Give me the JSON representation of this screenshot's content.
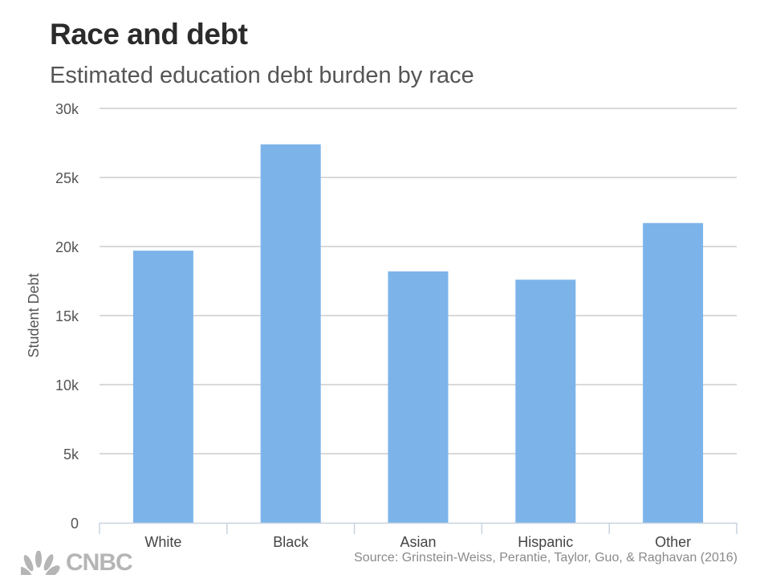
{
  "chart_data": {
    "type": "bar",
    "title": "Race and debt",
    "subtitle": "Estimated education debt burden by race",
    "xlabel": "",
    "ylabel": "Student Debt",
    "categories": [
      "White",
      "Black",
      "Asian",
      "Hispanic",
      "Other"
    ],
    "values": [
      19700,
      27400,
      18200,
      17600,
      21700
    ],
    "ylim": [
      0,
      30000
    ],
    "yticks": [
      0,
      5000,
      10000,
      15000,
      20000,
      25000,
      30000
    ],
    "ytick_labels": [
      "0",
      "5k",
      "10k",
      "15k",
      "20k",
      "25k",
      "30k"
    ],
    "grid": true,
    "bar_color": "#7cb4ea",
    "source": "Source: Grinstein-Weiss, Perantie, Taylor, Guo, & Raghavan (2016)"
  },
  "logo": {
    "text": "CNBC",
    "icon": "peacock-icon"
  }
}
